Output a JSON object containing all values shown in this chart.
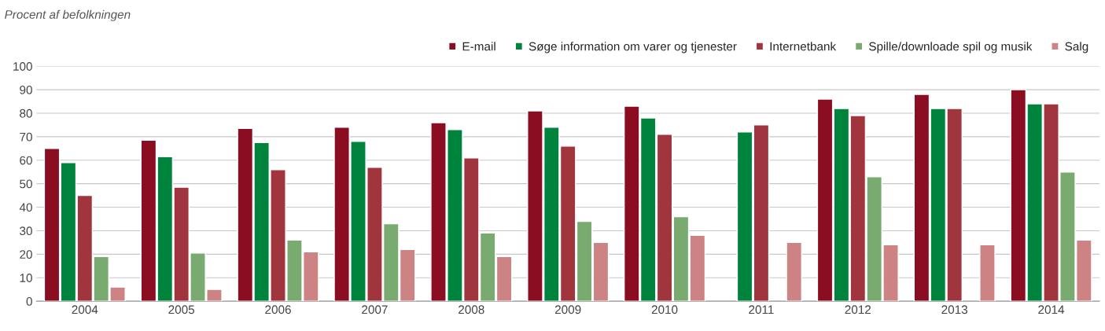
{
  "chart_data": {
    "type": "bar",
    "title": "Procent af befolkningen",
    "categories": [
      "2004",
      "2005",
      "2006",
      "2007",
      "2008",
      "2009",
      "2010",
      "2011",
      "2012",
      "2013",
      "2014"
    ],
    "series": [
      {
        "name": "E-mail",
        "color": "#8b0d22",
        "values": [
          65,
          68.5,
          73.5,
          74,
          76,
          81,
          83,
          null,
          86,
          88,
          90
        ]
      },
      {
        "name": "Søge information om varer og tjenester",
        "color": "#00843d",
        "values": [
          59,
          61.5,
          67.5,
          68,
          73,
          74,
          78,
          72,
          82,
          82,
          84
        ]
      },
      {
        "name": "Internetbank",
        "color": "#a1353e",
        "values": [
          45,
          48.5,
          56,
          57,
          61,
          66,
          71,
          75,
          79,
          82,
          84
        ]
      },
      {
        "name": "Spille/downloade spil og musik",
        "color": "#79aa70",
        "values": [
          19,
          20.5,
          26,
          33,
          29,
          34,
          36,
          null,
          53,
          null,
          55
        ]
      },
      {
        "name": "Salg",
        "color": "#cd8383",
        "values": [
          6,
          5,
          21,
          22,
          19,
          25,
          28,
          25,
          24,
          24,
          26
        ]
      }
    ],
    "ylim": [
      0,
      100
    ],
    "yticks": [
      0,
      10,
      20,
      30,
      40,
      50,
      60,
      70,
      80,
      90,
      100
    ],
    "grid": "y",
    "legend": "top right"
  }
}
